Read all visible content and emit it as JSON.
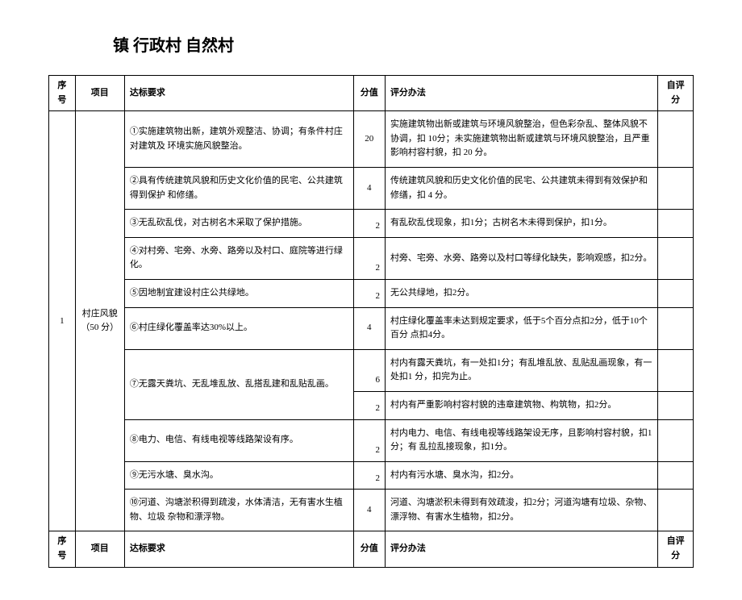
{
  "title": "镇  行政村  自然村",
  "headers": {
    "seq": "序号",
    "proj": "项目",
    "req": "达标要求",
    "score": "分值",
    "method": "评分办法",
    "self": "自评分"
  },
  "group": {
    "seq": "1",
    "proj": "村庄风貌（50 分）"
  },
  "rows": [
    {
      "req": "①实施建筑物出新，建筑外观整洁、协调；有条件村庄对建筑及 环境实施风貌整治。",
      "score": "20",
      "method": "实施建筑物出新或建筑与环境风貌整治，但色彩杂乱、整体风貌不协调，扣 10分；未实施建筑物出新或建筑与环境风貌整治，且严重影响村容村貌，扣 20 分。"
    },
    {
      "req": "②具有传统建筑风貌和历史文化价值的民宅、公共建筑得到保护 和修缮。",
      "score": "4",
      "method": "传统建筑风貌和历史文化价值的民宅、公共建筑未得到有效保护和修缮，扣 4 分。"
    },
    {
      "req": "③无乱砍乱伐，对古树名木采取了保护措施。",
      "score": "2",
      "method": "有乱砍乱伐现象，扣1分；古树名木未得到保护，扣1分。"
    },
    {
      "req": "④对村旁、宅旁、水旁、路旁以及村口、庭院等进行绿化。",
      "score": "2",
      "method": "村旁、宅旁、水旁、路旁以及村口等绿化缺失，影响观感，扣2分。"
    },
    {
      "req": "⑤因地制宜建设村庄公共绿地。",
      "score": "2",
      "method": "无公共绿地，扣2分。"
    },
    {
      "req": "⑥村庄绿化覆盖率达30%以上。",
      "score": "4",
      "method": "村庄绿化覆盖率未达到规定要求，低于5个百分点扣2分，低于10个百分 点扣4分。"
    },
    {
      "req": "⑦无露天粪坑、无乱堆乱放、乱搭乱建和乱贴乱画。",
      "score_a": "6",
      "method_a": "村内有露天粪坑，有一处扣1分；有乱堆乱放、乱贴乱画现象，有一处扣1 分，扣完为止。",
      "score_b": "2",
      "method_b": "村内有严重影响村容村貌的违章建筑物、构筑物，扣2分。"
    },
    {
      "req": "⑧电力、电信、有线电视等线路架设有序。",
      "score": "2",
      "method": "村内电力、电信、有线电视等线路架设无序，且影响村容村貌，扣1分；有 乱拉乱接现象，扣1分。"
    },
    {
      "req": "⑨无污水塘、臭水沟。",
      "score": "2",
      "method": "村内有污水塘、臭水沟，扣2分。"
    },
    {
      "req": "⑩河道、沟塘淤积得到疏浚，水体清洁，无有害水生植物、垃圾 杂物和漂浮物。",
      "score": "4",
      "method": "河道、沟塘淤积未得到有效疏浚，扣2分；河道沟塘有垃圾、杂物、漂浮物、有害水生植物，扣2分。"
    }
  ]
}
